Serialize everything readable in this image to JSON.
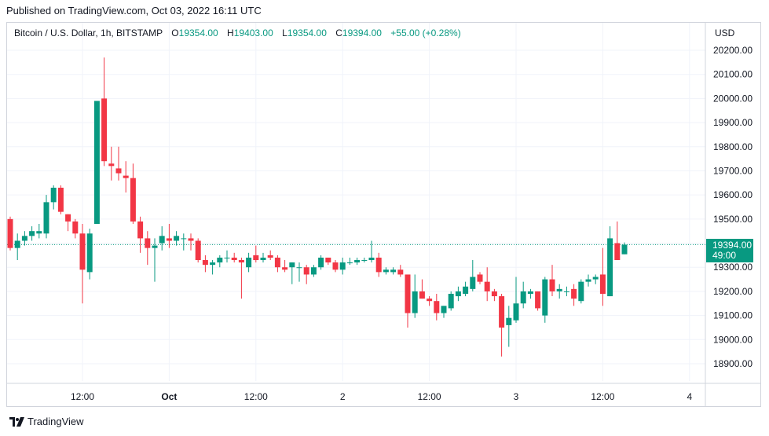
{
  "published": "Published on TradingView.com, Oct 03, 2022 16:11 UTC",
  "header": {
    "symbol": "Bitcoin / U.S. Dollar, 1h, BITSTAMP",
    "o_label": "O",
    "o_value": "19354.00",
    "h_label": "H",
    "h_value": "19403.00",
    "l_label": "L",
    "l_value": "19354.00",
    "c_label": "C",
    "c_value": "19394.00",
    "change": "+55.00 (+0.28%)"
  },
  "currency": "USD",
  "price_tag": {
    "price": "19394.00",
    "countdown": "49:00"
  },
  "brand": "TradingView",
  "colors": {
    "up": "#089981",
    "down": "#f23645",
    "grid": "#f0f3fa",
    "text": "#131722"
  },
  "chart_data": {
    "type": "candlestick",
    "ylim": [
      18850,
      20250
    ],
    "y_ticks": [
      "20200.00",
      "20100.00",
      "20000.00",
      "19900.00",
      "19800.00",
      "19700.00",
      "19600.00",
      "19500.00",
      "19400.00",
      "19300.00",
      "19200.00",
      "19100.00",
      "19000.00",
      "18900.00"
    ],
    "y_tick_values": [
      20200,
      20100,
      20000,
      19900,
      19800,
      19700,
      19600,
      19500,
      19400,
      19300,
      19200,
      19100,
      19000,
      18900
    ],
    "x_ticks": [
      {
        "label": "12:00",
        "index": 10
      },
      {
        "label": "Oct",
        "index": 22
      },
      {
        "label": "12:00",
        "index": 34
      },
      {
        "label": "2",
        "index": 46
      },
      {
        "label": "12:00",
        "index": 58
      },
      {
        "label": "3",
        "index": 70
      },
      {
        "label": "12:00",
        "index": 82
      },
      {
        "label": "4",
        "index": 94
      }
    ],
    "current_price": 19394,
    "candles": [
      {
        "o": 19500,
        "h": 19510,
        "l": 19370,
        "c": 19380
      },
      {
        "o": 19380,
        "h": 19440,
        "l": 19330,
        "c": 19410
      },
      {
        "o": 19410,
        "h": 19450,
        "l": 19390,
        "c": 19430
      },
      {
        "o": 19430,
        "h": 19470,
        "l": 19410,
        "c": 19450
      },
      {
        "o": 19440,
        "h": 19480,
        "l": 19420,
        "c": 19450
      },
      {
        "o": 19440,
        "h": 19600,
        "l": 19420,
        "c": 19570
      },
      {
        "o": 19570,
        "h": 19640,
        "l": 19540,
        "c": 19630
      },
      {
        "o": 19630,
        "h": 19640,
        "l": 19520,
        "c": 19530
      },
      {
        "o": 19520,
        "h": 19520,
        "l": 19450,
        "c": 19490
      },
      {
        "o": 19490,
        "h": 19500,
        "l": 19420,
        "c": 19440
      },
      {
        "o": 19440,
        "h": 19480,
        "l": 19150,
        "c": 19290
      },
      {
        "o": 19280,
        "h": 19460,
        "l": 19250,
        "c": 19440
      },
      {
        "o": 19480,
        "h": 19990,
        "l": 19480,
        "c": 19990
      },
      {
        "o": 20000,
        "h": 20170,
        "l": 19720,
        "c": 19740
      },
      {
        "o": 19730,
        "h": 19800,
        "l": 19660,
        "c": 19720
      },
      {
        "o": 19710,
        "h": 19800,
        "l": 19660,
        "c": 19690
      },
      {
        "o": 19680,
        "h": 19740,
        "l": 19610,
        "c": 19670
      },
      {
        "o": 19670,
        "h": 19730,
        "l": 19480,
        "c": 19490
      },
      {
        "o": 19490,
        "h": 19510,
        "l": 19360,
        "c": 19420
      },
      {
        "o": 19420,
        "h": 19450,
        "l": 19310,
        "c": 19380
      },
      {
        "o": 19380,
        "h": 19420,
        "l": 19240,
        "c": 19390
      },
      {
        "o": 19400,
        "h": 19470,
        "l": 19370,
        "c": 19430
      },
      {
        "o": 19420,
        "h": 19480,
        "l": 19380,
        "c": 19410
      },
      {
        "o": 19410,
        "h": 19450,
        "l": 19390,
        "c": 19430
      },
      {
        "o": 19420,
        "h": 19440,
        "l": 19370,
        "c": 19420
      },
      {
        "o": 19420,
        "h": 19440,
        "l": 19370,
        "c": 19410
      },
      {
        "o": 19410,
        "h": 19420,
        "l": 19320,
        "c": 19330
      },
      {
        "o": 19330,
        "h": 19350,
        "l": 19280,
        "c": 19310
      },
      {
        "o": 19310,
        "h": 19330,
        "l": 19270,
        "c": 19320
      },
      {
        "o": 19320,
        "h": 19350,
        "l": 19300,
        "c": 19340
      },
      {
        "o": 19340,
        "h": 19370,
        "l": 19320,
        "c": 19340
      },
      {
        "o": 19340,
        "h": 19360,
        "l": 19320,
        "c": 19330
      },
      {
        "o": 19330,
        "h": 19340,
        "l": 19170,
        "c": 19320
      },
      {
        "o": 19300,
        "h": 19360,
        "l": 19280,
        "c": 19340
      },
      {
        "o": 19350,
        "h": 19390,
        "l": 19320,
        "c": 19330
      },
      {
        "o": 19330,
        "h": 19360,
        "l": 19320,
        "c": 19340
      },
      {
        "o": 19350,
        "h": 19370,
        "l": 19330,
        "c": 19340
      },
      {
        "o": 19340,
        "h": 19350,
        "l": 19280,
        "c": 19300
      },
      {
        "o": 19300,
        "h": 19330,
        "l": 19280,
        "c": 19290
      },
      {
        "o": 19300,
        "h": 19320,
        "l": 19230,
        "c": 19320
      },
      {
        "o": 19300,
        "h": 19320,
        "l": 19240,
        "c": 19300
      },
      {
        "o": 19300,
        "h": 19310,
        "l": 19230,
        "c": 19270
      },
      {
        "o": 19270,
        "h": 19310,
        "l": 19260,
        "c": 19300
      },
      {
        "o": 19300,
        "h": 19350,
        "l": 19290,
        "c": 19340
      },
      {
        "o": 19340,
        "h": 19340,
        "l": 19310,
        "c": 19320
      },
      {
        "o": 19320,
        "h": 19330,
        "l": 19280,
        "c": 19290
      },
      {
        "o": 19290,
        "h": 19340,
        "l": 19270,
        "c": 19320
      },
      {
        "o": 19320,
        "h": 19340,
        "l": 19310,
        "c": 19320
      },
      {
        "o": 19320,
        "h": 19340,
        "l": 19310,
        "c": 19330
      },
      {
        "o": 19330,
        "h": 19340,
        "l": 19320,
        "c": 19330
      },
      {
        "o": 19330,
        "h": 19410,
        "l": 19320,
        "c": 19340
      },
      {
        "o": 19340,
        "h": 19360,
        "l": 19260,
        "c": 19280
      },
      {
        "o": 19280,
        "h": 19300,
        "l": 19270,
        "c": 19290
      },
      {
        "o": 19280,
        "h": 19300,
        "l": 19270,
        "c": 19290
      },
      {
        "o": 19290,
        "h": 19310,
        "l": 19260,
        "c": 19270
      },
      {
        "o": 19270,
        "h": 19270,
        "l": 19050,
        "c": 19110
      },
      {
        "o": 19110,
        "h": 19270,
        "l": 19090,
        "c": 19200
      },
      {
        "o": 19200,
        "h": 19250,
        "l": 19170,
        "c": 19170
      },
      {
        "o": 19170,
        "h": 19180,
        "l": 19140,
        "c": 19160
      },
      {
        "o": 19160,
        "h": 19190,
        "l": 19080,
        "c": 19110
      },
      {
        "o": 19110,
        "h": 19140,
        "l": 19090,
        "c": 19140
      },
      {
        "o": 19130,
        "h": 19200,
        "l": 19120,
        "c": 19190
      },
      {
        "o": 19180,
        "h": 19220,
        "l": 19160,
        "c": 19200
      },
      {
        "o": 19190,
        "h": 19240,
        "l": 19180,
        "c": 19220
      },
      {
        "o": 19210,
        "h": 19330,
        "l": 19200,
        "c": 19260
      },
      {
        "o": 19270,
        "h": 19280,
        "l": 19230,
        "c": 19240
      },
      {
        "o": 19240,
        "h": 19300,
        "l": 19160,
        "c": 19200
      },
      {
        "o": 19200,
        "h": 19210,
        "l": 19160,
        "c": 19180
      },
      {
        "o": 19180,
        "h": 19190,
        "l": 18930,
        "c": 19050
      },
      {
        "o": 19060,
        "h": 19140,
        "l": 18970,
        "c": 19090
      },
      {
        "o": 19080,
        "h": 19260,
        "l": 19070,
        "c": 19150
      },
      {
        "o": 19150,
        "h": 19240,
        "l": 19130,
        "c": 19200
      },
      {
        "o": 19190,
        "h": 19210,
        "l": 19170,
        "c": 19200
      },
      {
        "o": 19200,
        "h": 19200,
        "l": 19120,
        "c": 19130
      },
      {
        "o": 19100,
        "h": 19260,
        "l": 19070,
        "c": 19250
      },
      {
        "o": 19250,
        "h": 19310,
        "l": 19180,
        "c": 19200
      },
      {
        "o": 19200,
        "h": 19230,
        "l": 19170,
        "c": 19210
      },
      {
        "o": 19200,
        "h": 19220,
        "l": 19180,
        "c": 19200
      },
      {
        "o": 19210,
        "h": 19230,
        "l": 19140,
        "c": 19170
      },
      {
        "o": 19160,
        "h": 19250,
        "l": 19150,
        "c": 19240
      },
      {
        "o": 19240,
        "h": 19270,
        "l": 19220,
        "c": 19250
      },
      {
        "o": 19250,
        "h": 19270,
        "l": 19230,
        "c": 19260
      },
      {
        "o": 19270,
        "h": 19380,
        "l": 19140,
        "c": 19190
      },
      {
        "o": 19180,
        "h": 19470,
        "l": 19180,
        "c": 19420
      },
      {
        "o": 19400,
        "h": 19490,
        "l": 19330,
        "c": 19330
      },
      {
        "o": 19354,
        "h": 19403,
        "l": 19354,
        "c": 19394
      }
    ]
  }
}
